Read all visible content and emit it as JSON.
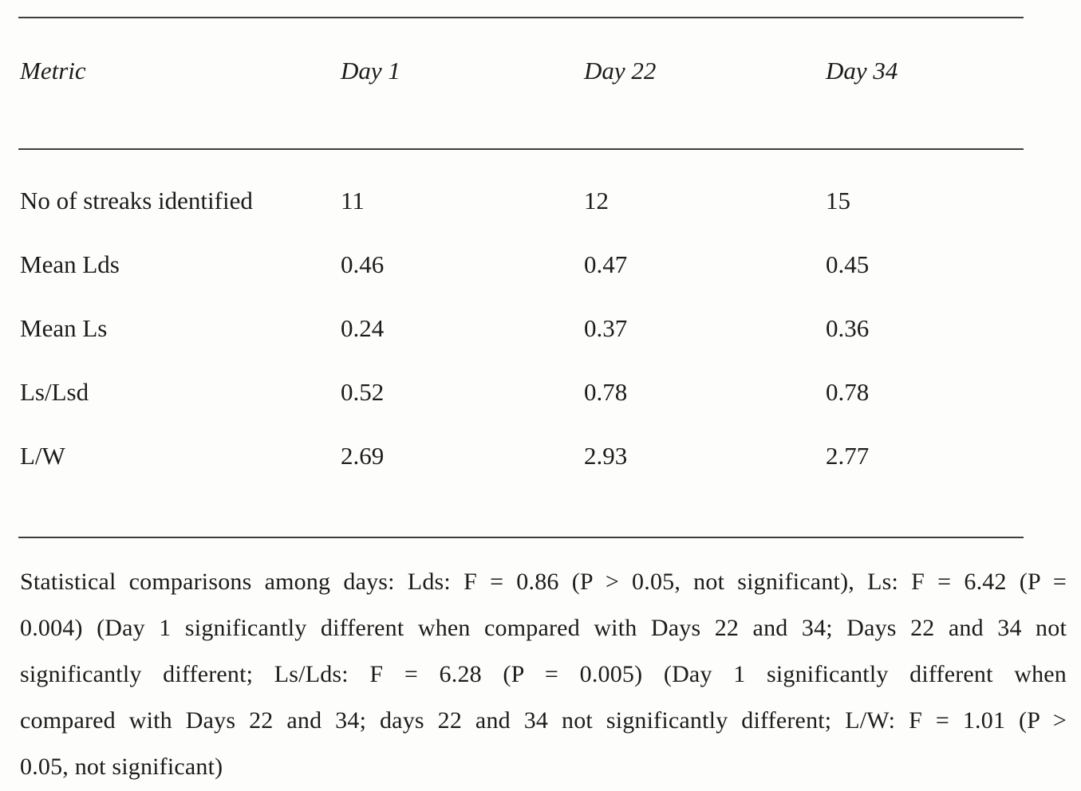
{
  "document": {
    "kind": "scanned-journal-table",
    "colors": {
      "background": "#fdfdfb",
      "text": "#1c1c1c",
      "rule": "#3f3f3f"
    }
  },
  "table": {
    "columns": [
      "Metric",
      "Day 1",
      "Day 22",
      "Day 34"
    ],
    "rows": [
      {
        "label": "No of streaks identified",
        "day1": "11",
        "day22": "12",
        "day34": "15"
      },
      {
        "label": "Mean Lds",
        "day1": "0.46",
        "day22": "0.47",
        "day34": "0.45"
      },
      {
        "label": "Mean Ls",
        "day1": "0.24",
        "day22": "0.37",
        "day34": "0.36"
      },
      {
        "label": "Ls/Lsd",
        "day1": "0.52",
        "day22": "0.78",
        "day34": "0.78"
      },
      {
        "label": "L/W",
        "day1": "2.69",
        "day22": "2.93",
        "day34": "2.77"
      }
    ]
  },
  "chart_data": {
    "type": "table",
    "categories": [
      "Day 1",
      "Day 22",
      "Day 34"
    ],
    "series": [
      {
        "name": "No of streaks identified",
        "values": [
          11,
          12,
          15
        ]
      },
      {
        "name": "Mean Lds",
        "values": [
          0.46,
          0.47,
          0.45
        ]
      },
      {
        "name": "Mean Ls",
        "values": [
          0.24,
          0.37,
          0.36
        ]
      },
      {
        "name": "Ls/Lsd",
        "values": [
          0.52,
          0.78,
          0.78
        ]
      },
      {
        "name": "L/W",
        "values": [
          2.69,
          2.93,
          2.77
        ]
      }
    ]
  },
  "footnote": {
    "lines": [
      "Statistical comparisons among days: Lds: F = 0.86 (P > 0.05, not significant), Ls: F = 6.42 (P =",
      "0.004) (Day 1 significantly different when compared with Days 22 and 34; Days 22 and 34 not",
      "significantly different; Ls/Lds: F = 6.28 (P = 0.005) (Day 1 significantly different when",
      "compared with Days 22 and 34; days 22 and 34 not significantly different; L/W: F = 1.01 (P >",
      "0.05, not significant)"
    ]
  }
}
